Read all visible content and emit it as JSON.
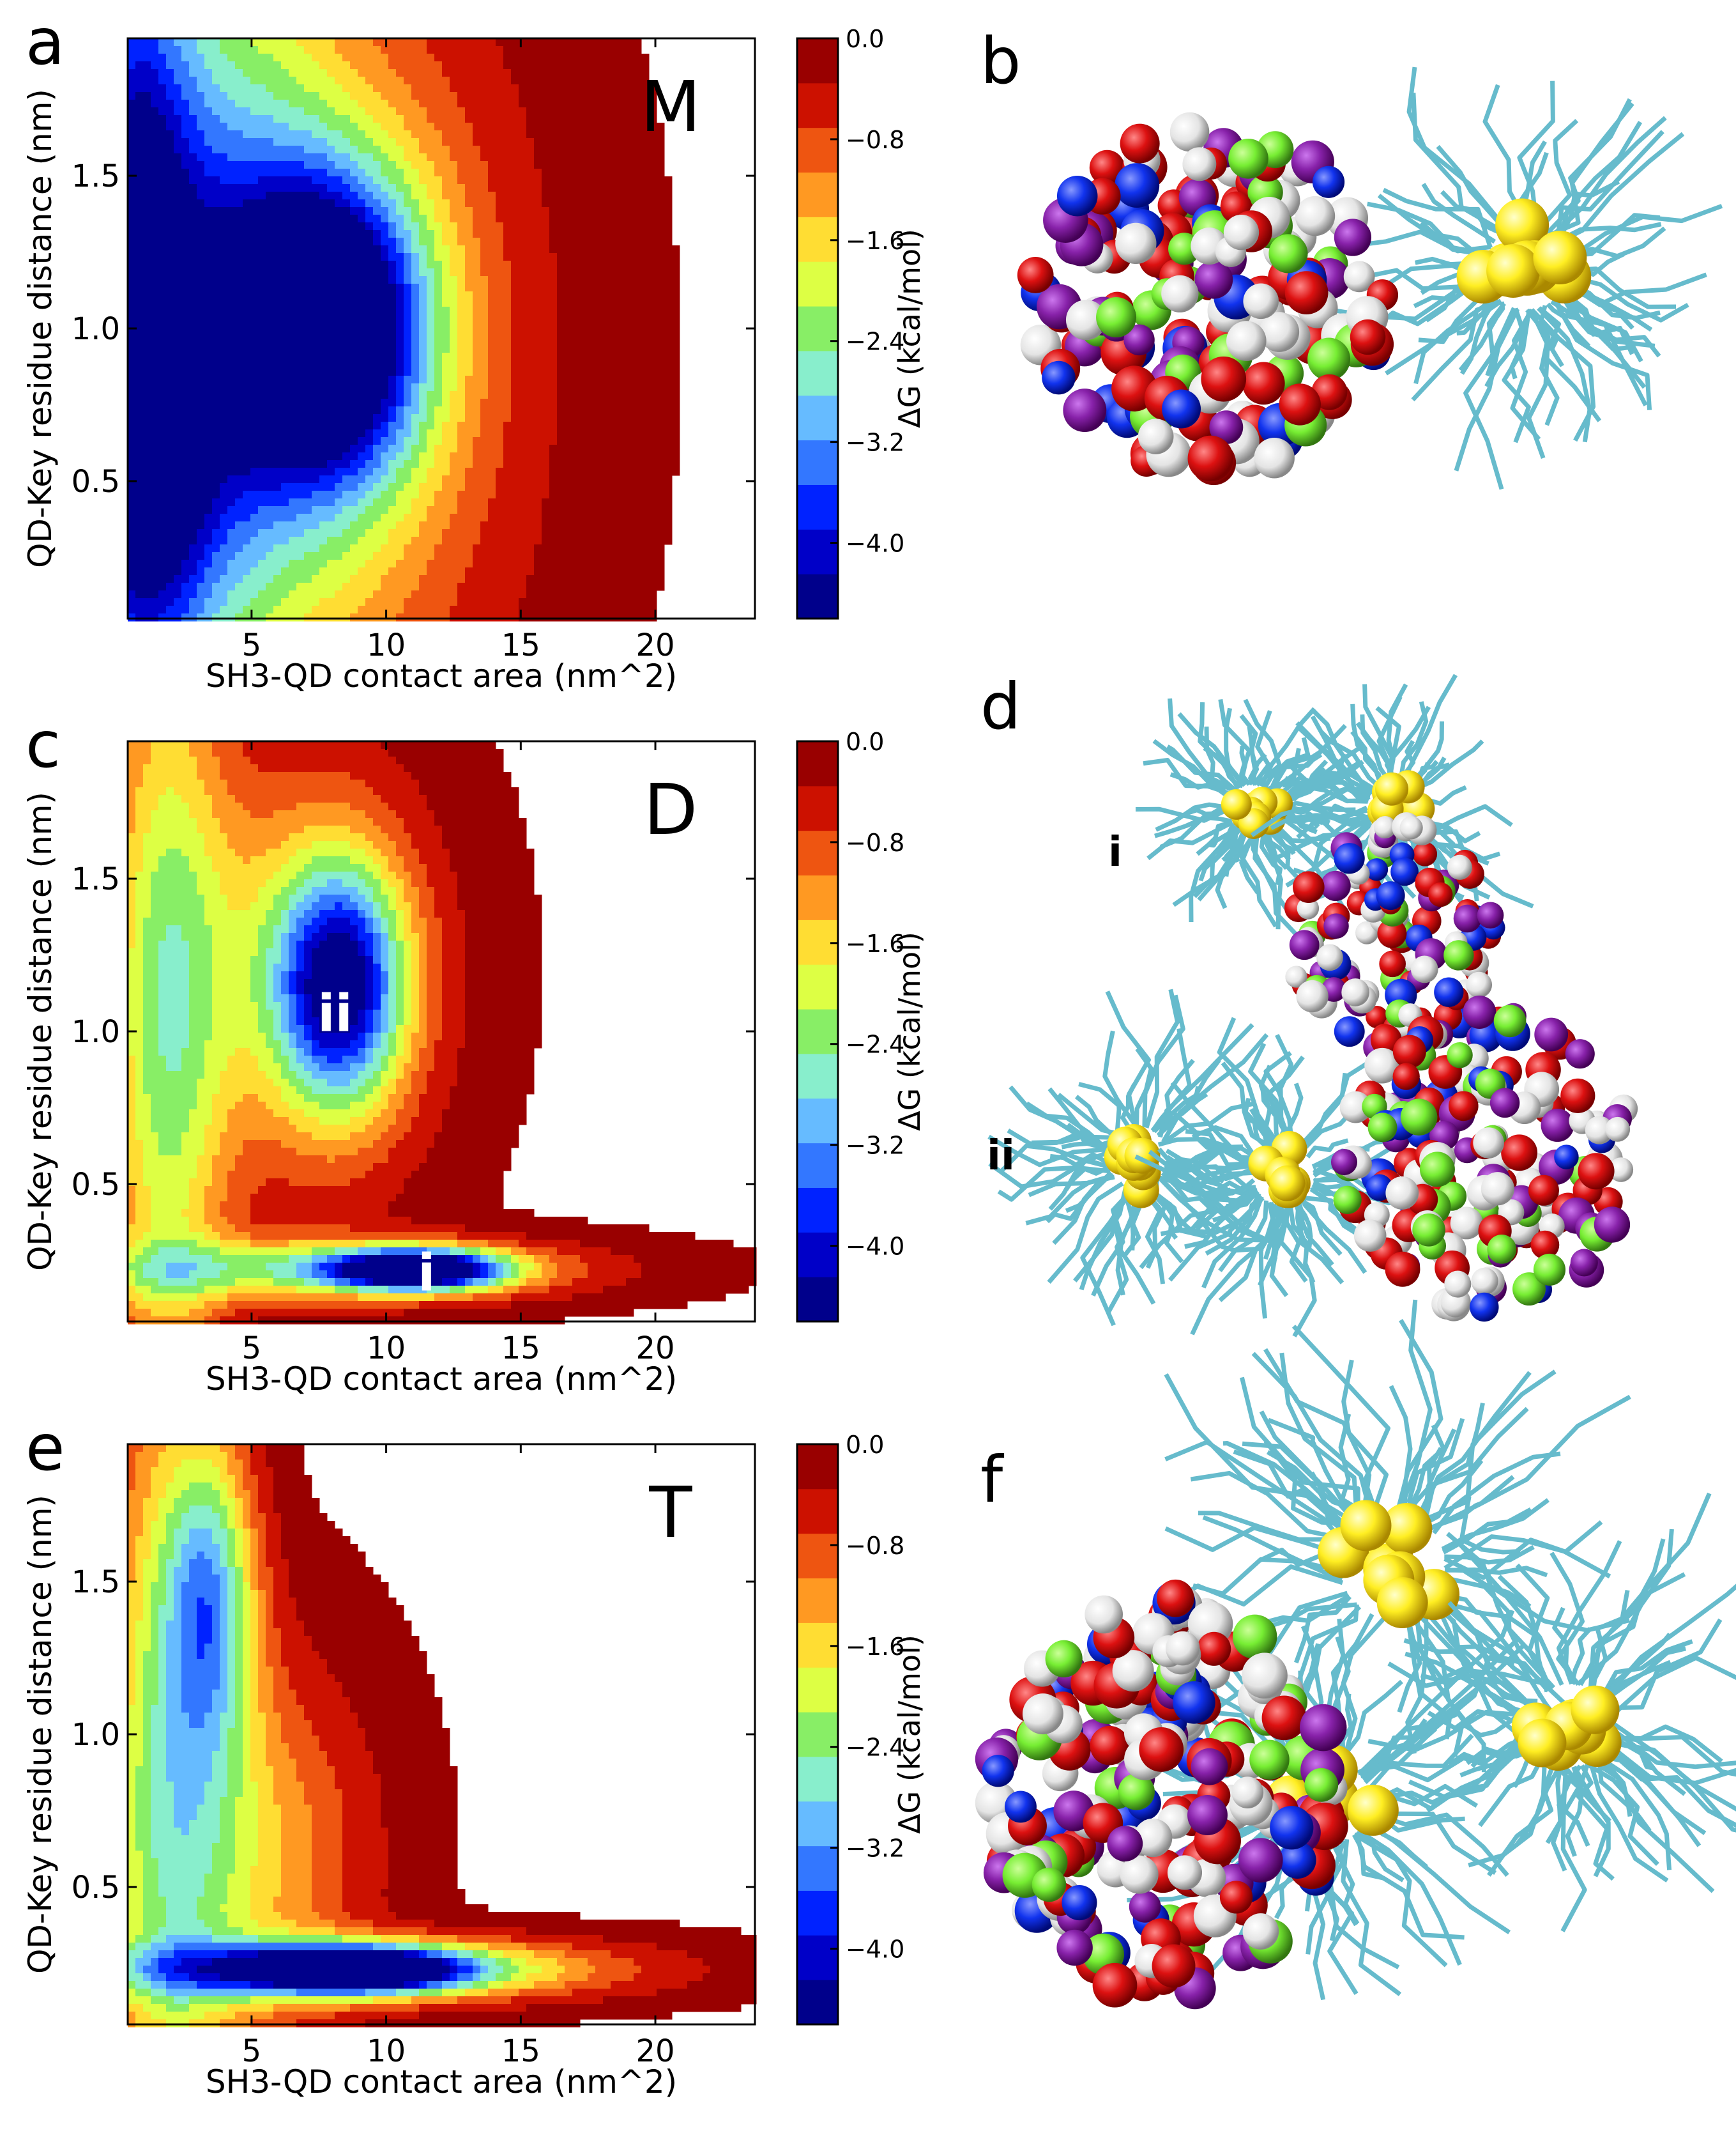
{
  "colors": {
    "levels": [
      "#00008b",
      "#0000c8",
      "#0022ff",
      "#3377ff",
      "#66bbff",
      "#88eecc",
      "#88ee66",
      "#ddff44",
      "#ffdd33",
      "#ff9922",
      "#ee5511",
      "#cc1100",
      "#990000"
    ],
    "contour_line": "#222222",
    "protein_red": "#dd1111",
    "protein_blue": "#1133ee",
    "protein_green": "#77ee33",
    "protein_white": "#eeeeee",
    "protein_purple": "#8822aa",
    "qd_yellow": "#ffee22",
    "ligand_cyan": "#66bbcc"
  },
  "panels": [
    {
      "letter": "a",
      "kind": "chart",
      "chart_index": 0
    },
    {
      "letter": "b",
      "kind": "render"
    },
    {
      "letter": "c",
      "kind": "chart",
      "chart_index": 1
    },
    {
      "letter": "d",
      "kind": "render",
      "sub_labels": [
        "i",
        "ii"
      ]
    },
    {
      "letter": "e",
      "kind": "chart",
      "chart_index": 2
    },
    {
      "letter": "f",
      "kind": "render"
    }
  ],
  "chart_data": [
    {
      "type": "heatmap",
      "title": "M",
      "xlabel": "SH3-QD contact area (nm^2)",
      "ylabel": "QD-Key residue distance (nm)",
      "xlim": [
        0.4,
        23.7
      ],
      "ylim": [
        0.05,
        1.95
      ],
      "xticks": [
        5,
        10,
        15,
        20
      ],
      "yticks": [
        0.5,
        1.0,
        1.5
      ],
      "colorbar": {
        "label": "ΔG (kcal/mol)",
        "range": [
          -4.6,
          0.0
        ],
        "ticks": [
          0.0,
          -0.8,
          -1.6,
          -2.4,
          -3.2,
          -4.0
        ],
        "tick_labels": [
          "0.0",
          "−0.8",
          "−1.6",
          "−2.4",
          "−3.2",
          "−4.0"
        ]
      },
      "annotations": [],
      "free_energy_basins": [
        {
          "x": 0.4,
          "y": 1.1,
          "sx": 1.6,
          "sy": 0.9,
          "depth": 3.2
        },
        {
          "x": 7.8,
          "y": 1.0,
          "sx": 2.6,
          "sy": 0.35,
          "depth": 4.6
        },
        {
          "x": 6.0,
          "y": 0.9,
          "sx": 5.5,
          "sy": 0.9,
          "depth": 2.0
        },
        {
          "x": 3.0,
          "y": 1.2,
          "sx": 3.0,
          "sy": 1.1,
          "depth": 1.6
        },
        {
          "x": 1.5,
          "y": 0.45,
          "sx": 2.0,
          "sy": 0.45,
          "depth": 1.3
        }
      ]
    },
    {
      "type": "heatmap",
      "title": "D",
      "xlabel": "SH3-QD contact area (nm^2)",
      "ylabel": "QD-Key residue distance (nm)",
      "xlim": [
        0.4,
        23.7
      ],
      "ylim": [
        0.05,
        1.95
      ],
      "xticks": [
        5,
        10,
        15,
        20
      ],
      "yticks": [
        0.5,
        1.0,
        1.5
      ],
      "colorbar": {
        "label": "ΔG (kcal/mol)",
        "range": [
          -4.6,
          0.0
        ],
        "ticks": [
          0.0,
          -0.8,
          -1.6,
          -2.4,
          -3.2,
          -4.0
        ],
        "tick_labels": [
          "0.0",
          "−0.8",
          "−1.6",
          "−2.4",
          "−3.2",
          "−4.0"
        ]
      },
      "annotations": [
        {
          "text": "ii",
          "x": 8.1,
          "y": 1.06
        },
        {
          "text": "i",
          "x": 11.5,
          "y": 0.21
        }
      ],
      "free_energy_basins": [
        {
          "x": 8.3,
          "y": 1.15,
          "sx": 1.7,
          "sy": 0.28,
          "depth": 3.7
        },
        {
          "x": 11.2,
          "y": 0.22,
          "sx": 2.2,
          "sy": 0.045,
          "depth": 4.5
        },
        {
          "x": 8.0,
          "y": 0.22,
          "sx": 6.0,
          "sy": 0.07,
          "depth": 2.2
        },
        {
          "x": 1.8,
          "y": 1.0,
          "sx": 1.6,
          "sy": 1.0,
          "depth": 2.0
        },
        {
          "x": 6.5,
          "y": 1.2,
          "sx": 3.6,
          "sy": 0.5,
          "depth": 1.4
        }
      ]
    },
    {
      "type": "heatmap",
      "title": "T",
      "xlabel": "SH3-QD contact area (nm^2)",
      "ylabel": "QD-Key residue distance (nm)",
      "xlim": [
        0.4,
        23.7
      ],
      "ylim": [
        0.05,
        1.95
      ],
      "xticks": [
        5,
        10,
        15,
        20
      ],
      "yticks": [
        0.5,
        1.0,
        1.5
      ],
      "colorbar": {
        "label": "ΔG (kcal/mol)",
        "range": [
          -4.6,
          0.0
        ],
        "ticks": [
          0.0,
          -0.8,
          -1.6,
          -2.4,
          -3.2,
          -4.0
        ],
        "tick_labels": [
          "0.0",
          "−0.8",
          "−1.6",
          "−2.4",
          "−3.2",
          "−4.0"
        ]
      },
      "annotations": [],
      "free_energy_basins": [
        {
          "x": 8.8,
          "y": 0.23,
          "sx": 2.8,
          "sy": 0.05,
          "depth": 4.4
        },
        {
          "x": 9.0,
          "y": 0.23,
          "sx": 6.5,
          "sy": 0.07,
          "depth": 2.6
        },
        {
          "x": 3.5,
          "y": 1.45,
          "sx": 1.2,
          "sy": 0.35,
          "depth": 2.2
        },
        {
          "x": 1.8,
          "y": 0.9,
          "sx": 1.8,
          "sy": 1.0,
          "depth": 1.9
        },
        {
          "x": 5.0,
          "y": 0.6,
          "sx": 3.0,
          "sy": 0.45,
          "depth": 1.4
        }
      ]
    }
  ]
}
